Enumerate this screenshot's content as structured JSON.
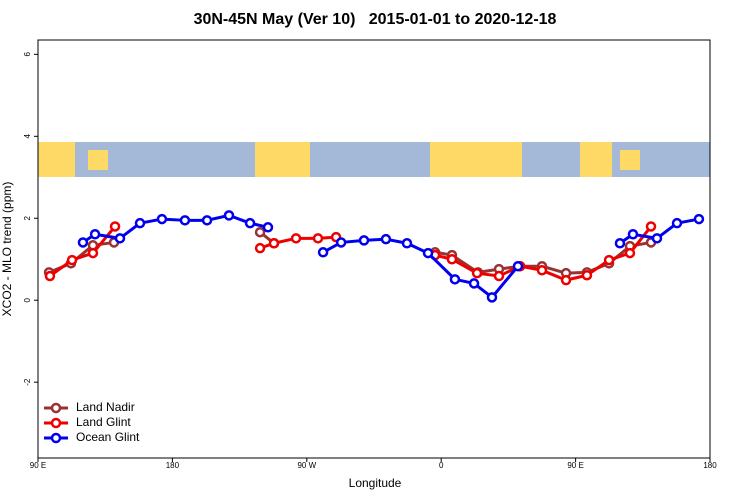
{
  "chart_data": {
    "type": "line",
    "title": "30N-45N May (Ver 10)   2015-01-01 to 2020-12-18",
    "x_label": "Longitude",
    "y_label": "XCO2 - MLO trend (ppm)",
    "xlim": [
      90,
      540
    ],
    "ylim": [
      -3.85,
      6.35
    ],
    "xticks": [
      {
        "value": 90,
        "label": "90 E"
      },
      {
        "value": 180,
        "label": "180"
      },
      {
        "value": 270,
        "label": "90 W"
      },
      {
        "value": 360,
        "label": "0"
      },
      {
        "value": 450,
        "label": "90 E"
      },
      {
        "value": 540,
        "label": "180"
      }
    ],
    "yticks": [
      -2,
      0,
      2,
      4,
      6
    ],
    "legend": "bottom-left",
    "series": [
      {
        "name": "Land Nadir",
        "color": "#993333",
        "x": [
          97.4,
          112.1,
          126.8,
          140.9,
          null,
          238.7,
          248.1,
          null,
          355.9,
          367.2,
          384.6,
          398.7,
          412.8,
          427.5,
          443.6,
          457.6,
          472.4,
          486.4,
          500.5
        ],
        "values": [
          0.68,
          0.9,
          1.34,
          1.41,
          null,
          1.66,
          1.39,
          null,
          1.17,
          1.1,
          0.68,
          0.76,
          0.83,
          0.83,
          0.66,
          0.68,
          0.9,
          1.32,
          1.41
        ]
      },
      {
        "name": "Land Glint",
        "color": "#ee0000",
        "x": [
          98,
          112.8,
          126.8,
          141.6,
          null,
          238.7,
          248,
          262.8,
          277.5,
          289.6,
          null,
          355.9,
          367.2,
          384,
          398.7,
          412.8,
          427.5,
          443.6,
          457.6,
          472.4,
          486.4,
          500.5
        ],
        "values": [
          0.59,
          0.98,
          1.15,
          1.8,
          null,
          1.27,
          1.39,
          1.51,
          1.51,
          1.54,
          null,
          1.1,
          1.0,
          0.66,
          0.59,
          0.83,
          0.73,
          0.49,
          0.61,
          0.98,
          1.15,
          1.8
        ]
      },
      {
        "name": "Ocean Glint",
        "color": "#0000ee",
        "x": [
          120.1,
          128.2,
          144.9,
          158.3,
          173,
          188.4,
          203.2,
          217.9,
          232,
          244,
          null,
          280.9,
          293,
          308.3,
          323,
          337.1,
          351.2,
          369.2,
          382,
          394,
          411.4,
          null,
          479.7,
          488.4,
          504.5,
          517.9,
          532.6
        ],
        "values": [
          1.41,
          1.61,
          1.51,
          1.88,
          1.98,
          1.95,
          1.95,
          2.07,
          1.88,
          1.78,
          null,
          1.17,
          1.41,
          1.46,
          1.49,
          1.39,
          1.15,
          0.51,
          0.41,
          0.07,
          0.83,
          null,
          1.39,
          1.61,
          1.51,
          1.88,
          1.98
        ]
      }
    ]
  }
}
